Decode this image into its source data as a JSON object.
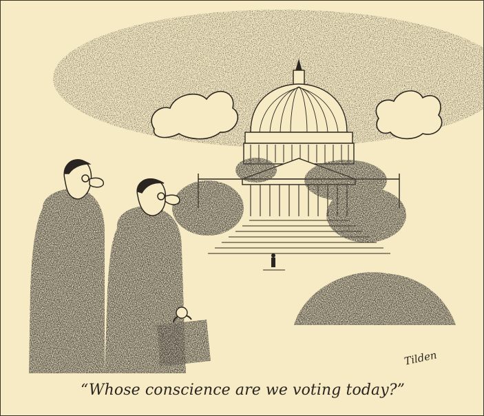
{
  "cartoon": {
    "caption": "“Whose conscience are we voting today?”",
    "signature": "Tilden",
    "colors": {
      "paper": "#f6ebc4",
      "ink": "#2a2520",
      "frame": "#3a3428"
    }
  }
}
